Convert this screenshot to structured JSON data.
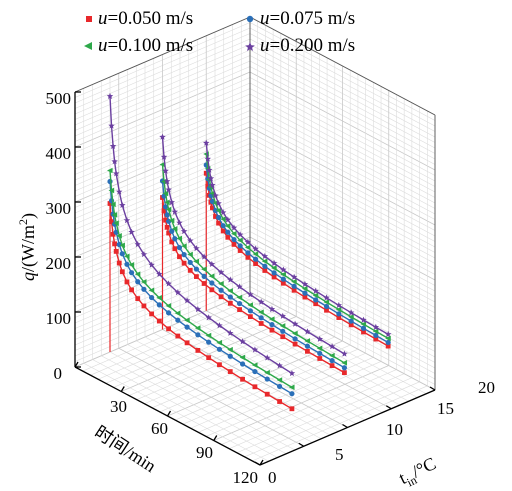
{
  "chart_data": {
    "type": "line",
    "projection": "3d",
    "grid": true,
    "legend_position": "top",
    "axes": {
      "time": {
        "label": "时间/min",
        "ticks": [
          "0",
          "30",
          "60",
          "90",
          "120"
        ],
        "range": [
          0,
          120
        ]
      },
      "tin": {
        "label": "t_in/°C",
        "label_main": "t",
        "label_sub": "in",
        "label_tail": "/°C",
        "ticks": [
          "0",
          "5",
          "10",
          "15",
          "20"
        ],
        "range": [
          0,
          20
        ]
      },
      "q": {
        "label": "q/(W/m²)",
        "label_main": "q",
        "label_unit": "/(W/m",
        "label_sup": "2",
        "label_close": ")",
        "ticks": [
          "0",
          "100",
          "200",
          "300",
          "400",
          "500"
        ],
        "range": [
          0,
          500
        ]
      }
    },
    "legend": [
      {
        "name": "u=0.050 m/s",
        "var": "u",
        "value": "=0.050 m/s",
        "color": "#e8282b",
        "marker": "square"
      },
      {
        "name": "u=0.075 m/s",
        "var": "u",
        "value": "=0.075 m/s",
        "color": "#2a6fb8",
        "marker": "circle"
      },
      {
        "name": "u=0.100 m/s",
        "var": "u",
        "value": "=0.100 m/s",
        "color": "#2ea84a",
        "marker": "triangle-left"
      },
      {
        "name": "u=0.200 m/s",
        "var": "u",
        "value": "=0.200 m/s",
        "color": "#6b3fa0",
        "marker": "star"
      }
    ],
    "planes": [
      {
        "tin": 4,
        "series": [
          {
            "legend_index": 0,
            "q0": 270,
            "qend": 35
          },
          {
            "legend_index": 1,
            "q0": 310,
            "qend": 60
          },
          {
            "legend_index": 2,
            "q0": 330,
            "qend": 70
          },
          {
            "legend_index": 3,
            "q0": 465,
            "qend": 75
          }
        ]
      },
      {
        "tin": 10,
        "series": [
          {
            "legend_index": 0,
            "q0": 240,
            "qend": 70
          },
          {
            "legend_index": 1,
            "q0": 270,
            "qend": 75
          },
          {
            "legend_index": 2,
            "q0": 300,
            "qend": 80
          },
          {
            "legend_index": 3,
            "q0": 350,
            "qend": 90
          }
        ]
      },
      {
        "tin": 15,
        "series": [
          {
            "legend_index": 0,
            "q0": 250,
            "qend": 85
          },
          {
            "legend_index": 1,
            "q0": 265,
            "qend": 90
          },
          {
            "legend_index": 2,
            "q0": 285,
            "qend": 95
          },
          {
            "legend_index": 3,
            "q0": 305,
            "qend": 100
          }
        ]
      }
    ],
    "time_points": [
      0,
      1,
      2,
      3,
      4,
      6,
      8,
      11,
      14,
      18,
      22,
      27,
      32,
      38,
      44,
      50,
      57,
      64,
      71,
      78,
      86,
      94,
      102,
      110,
      118
    ]
  }
}
